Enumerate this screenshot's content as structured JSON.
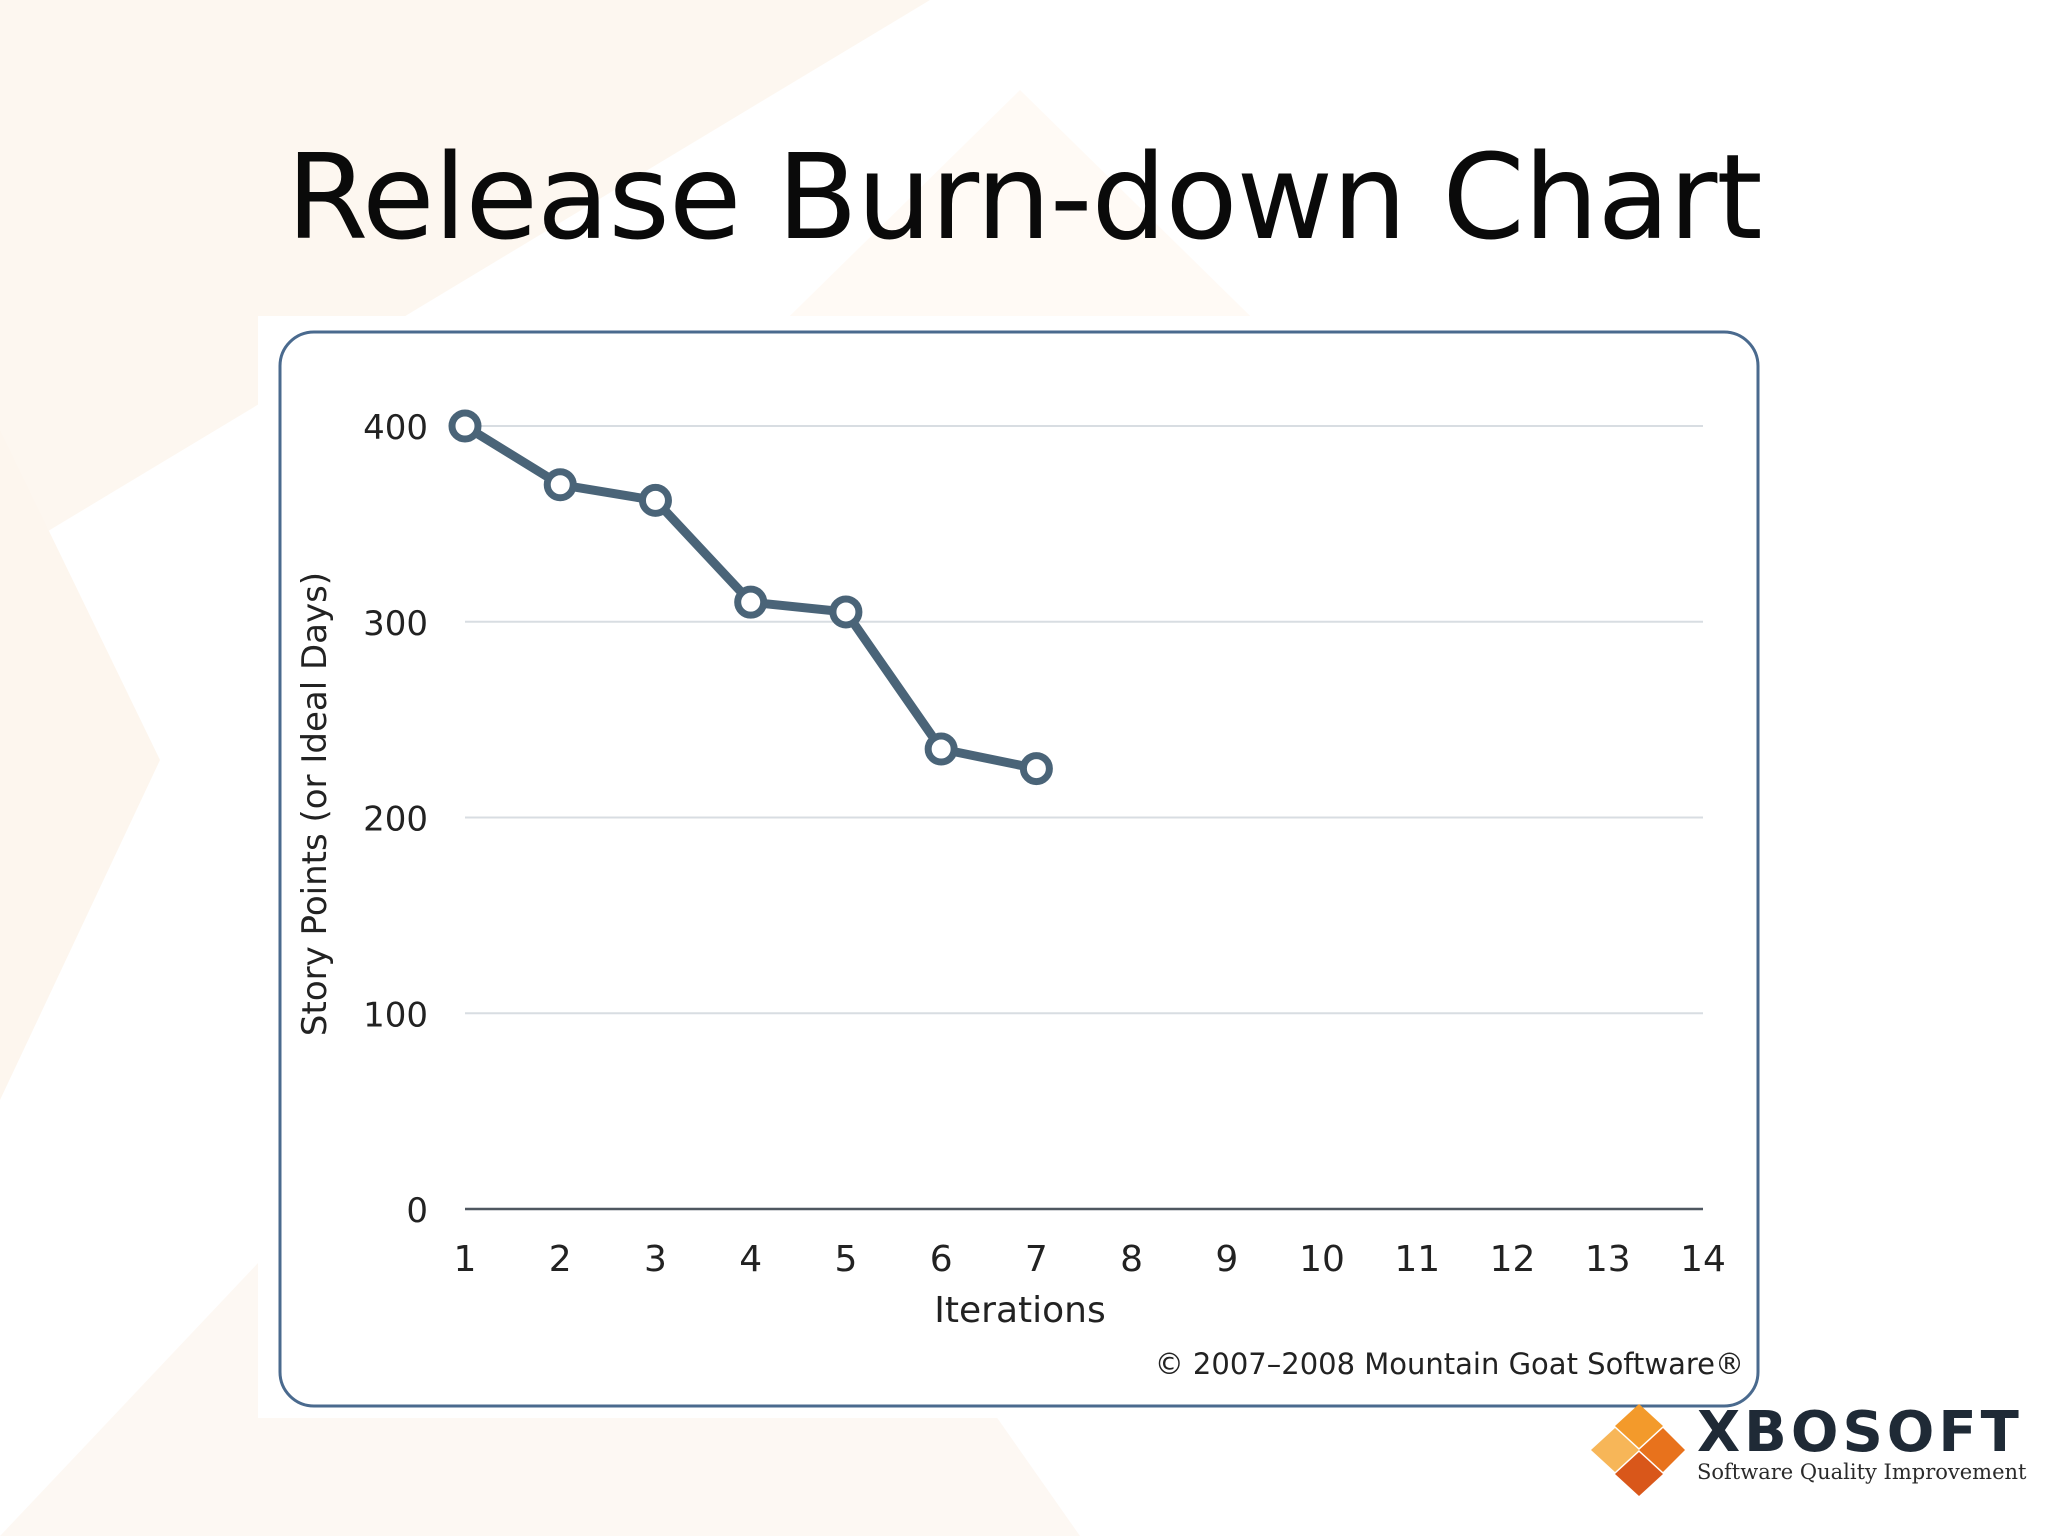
{
  "slide": {
    "title": "Release Burn-down Chart"
  },
  "chart_data": {
    "type": "line",
    "title": "",
    "xlabel": "Iterations",
    "ylabel": "Story Points (or Ideal Days)",
    "x_ticks": [
      "1",
      "2",
      "3",
      "4",
      "5",
      "6",
      "7",
      "8",
      "9",
      "10",
      "11",
      "12",
      "13",
      "14"
    ],
    "y_ticks": [
      "0",
      "100",
      "200",
      "300",
      "400"
    ],
    "xlim": [
      1,
      14
    ],
    "ylim": [
      0,
      400
    ],
    "grid": true,
    "series": [
      {
        "x": [
          1,
          2,
          3,
          4,
          5,
          6,
          7
        ],
        "values": [
          400,
          370,
          362,
          310,
          305,
          235,
          225
        ],
        "color": "#4a6478"
      }
    ],
    "copyright": "© 2007–2008 Mountain Goat Software®"
  },
  "logo": {
    "name": "XBOSOFT",
    "tagline": "Software Quality Improvement",
    "colors": [
      "#f39a2b",
      "#e8721c",
      "#f7b658",
      "#d9571a"
    ]
  },
  "colors": {
    "frame": "#4a6a8e",
    "grid": "#d8dde2",
    "background_tint": "#fdf4ea"
  }
}
